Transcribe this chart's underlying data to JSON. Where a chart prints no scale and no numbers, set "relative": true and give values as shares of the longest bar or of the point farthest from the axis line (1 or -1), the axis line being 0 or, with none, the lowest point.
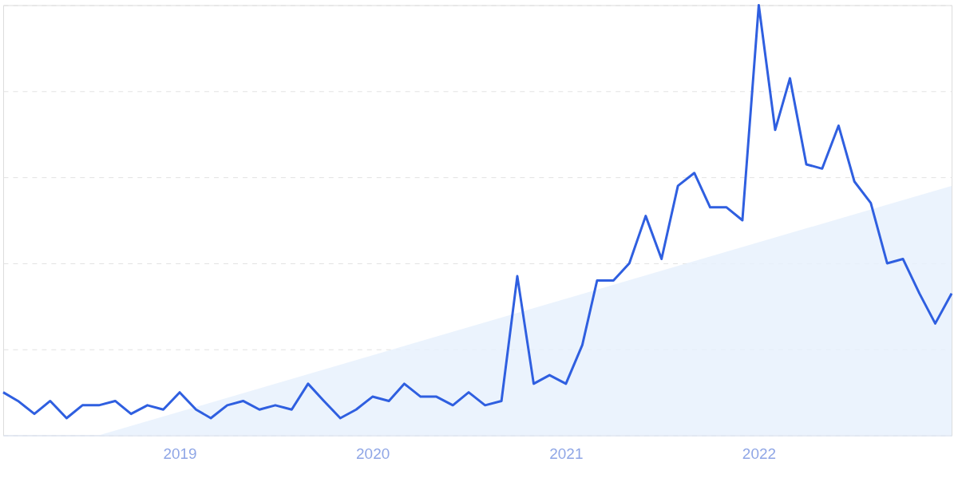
{
  "chart_data": {
    "type": "line",
    "relative": true,
    "xlim": [
      "2018-02",
      "2023-01"
    ],
    "xticks": [
      {
        "value": "2019-01",
        "label": "2019"
      },
      {
        "value": "2020-01",
        "label": "2020"
      },
      {
        "value": "2021-01",
        "label": "2021"
      },
      {
        "value": "2022-01",
        "label": "2022"
      }
    ],
    "tick_labels": "x",
    "grid": "y",
    "legend": false,
    "marker": "none",
    "line_style": "solid",
    "series": [
      {
        "type": "area",
        "color": "#e6f0fc",
        "x": [
          "2018-08",
          "2023-01"
        ],
        "values": [
          0,
          0.58
        ]
      },
      {
        "color": "#2f5fe0",
        "x": [
          "2018-02",
          "2018-03",
          "2018-04",
          "2018-05",
          "2018-06",
          "2018-07",
          "2018-08",
          "2018-09",
          "2018-10",
          "2018-11",
          "2018-12",
          "2019-01",
          "2019-02",
          "2019-03",
          "2019-04",
          "2019-05",
          "2019-06",
          "2019-07",
          "2019-08",
          "2019-09",
          "2019-10",
          "2019-11",
          "2019-12",
          "2020-01",
          "2020-02",
          "2020-03",
          "2020-04",
          "2020-05",
          "2020-06",
          "2020-07",
          "2020-08",
          "2020-09",
          "2020-10",
          "2020-11",
          "2020-12",
          "2021-01",
          "2021-02",
          "2021-03",
          "2021-04",
          "2021-05",
          "2021-06",
          "2021-07",
          "2021-08",
          "2021-09",
          "2021-10",
          "2021-11",
          "2021-12",
          "2022-01",
          "2022-02",
          "2022-03",
          "2022-04",
          "2022-05",
          "2022-06",
          "2022-07",
          "2022-08",
          "2022-09",
          "2022-10",
          "2022-11",
          "2022-12",
          "2023-01"
        ],
        "values": [
          0.1,
          0.08,
          0.05,
          0.08,
          0.04,
          0.07,
          0.07,
          0.08,
          0.05,
          0.07,
          0.06,
          0.1,
          0.06,
          0.04,
          0.07,
          0.08,
          0.06,
          0.07,
          0.06,
          0.12,
          0.08,
          0.04,
          0.06,
          0.09,
          0.08,
          0.12,
          0.09,
          0.09,
          0.07,
          0.1,
          0.07,
          0.08,
          0.37,
          0.12,
          0.14,
          0.12,
          0.21,
          0.36,
          0.36,
          0.4,
          0.51,
          0.41,
          0.58,
          0.61,
          0.53,
          0.53,
          0.5,
          1.0,
          0.71,
          0.83,
          0.63,
          0.62,
          0.72,
          0.59,
          0.54,
          0.4,
          0.41,
          0.33,
          0.26,
          0.33
        ]
      }
    ]
  }
}
